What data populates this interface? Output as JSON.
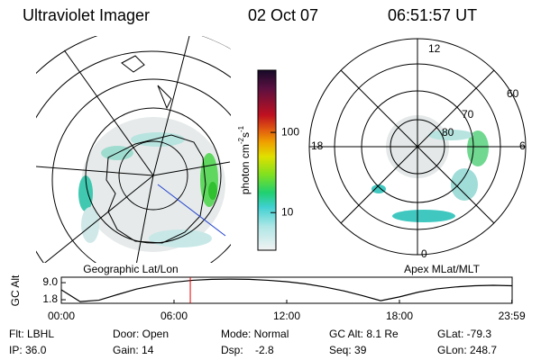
{
  "header": {
    "title": "Ultraviolet Imager",
    "date": "02 Oct 07",
    "time": "06:51:57 UT"
  },
  "geo_panel": {
    "label": "Geographic Lat/Lon"
  },
  "colorbar": {
    "label_parts": [
      "photon cm",
      "-2",
      "s",
      "-1"
    ],
    "log": true,
    "lim": [
      3.4,
      596
    ],
    "ticks": [
      10,
      100
    ]
  },
  "polar_panel": {
    "label": "Apex MLat/MLT",
    "mlt_labels": [
      "12",
      "18",
      "6",
      "0"
    ],
    "mlat_labels": [
      "60",
      "70",
      "80"
    ]
  },
  "chart_data": {
    "type": "line",
    "ylabel": "GC Alt",
    "x": [
      0,
      1,
      2,
      3,
      4,
      5,
      6,
      7,
      8,
      9,
      10,
      11,
      12,
      13,
      14,
      15,
      16,
      17,
      18,
      19,
      20,
      21,
      22,
      23,
      24
    ],
    "series": [
      {
        "name": "GC Alt",
        "color": "#000000",
        "values": [
          6.0,
          1.0,
          1.6,
          4.0,
          6.3,
          7.9,
          9.2,
          10.0,
          10.4,
          10.5,
          10.4,
          10.0,
          9.4,
          8.5,
          7.2,
          5.6,
          3.6,
          1.4,
          3.0,
          5.0,
          6.4,
          7.2,
          7.7,
          7.9,
          7.7
        ]
      }
    ],
    "cursor": 6.866,
    "xlim": [
      0,
      24
    ],
    "xticks": [
      {
        "value": 0,
        "label": "00:00"
      },
      {
        "value": 6,
        "label": "06:00"
      },
      {
        "value": 12,
        "label": "12:00"
      },
      {
        "value": 18,
        "label": "18:00"
      },
      {
        "value": 23.983,
        "label": "23:59"
      }
    ],
    "ylim": [
      0.3,
      11.3
    ],
    "yticks": [
      {
        "value": 1.8,
        "label": "1.8"
      },
      {
        "value": 9,
        "label": "9.0"
      }
    ]
  },
  "footer": {
    "rows": [
      [
        "Flt: LBHL",
        "Door: Open",
        "Mode: Normal",
        "GC Alt: 8.1 Re",
        "GLat: -79.3"
      ],
      [
        "IP: 36.0",
        "Gain: 14",
        "Dsp:    -2.8",
        "Seq: 39",
        "GLon: 248.7"
      ]
    ]
  }
}
